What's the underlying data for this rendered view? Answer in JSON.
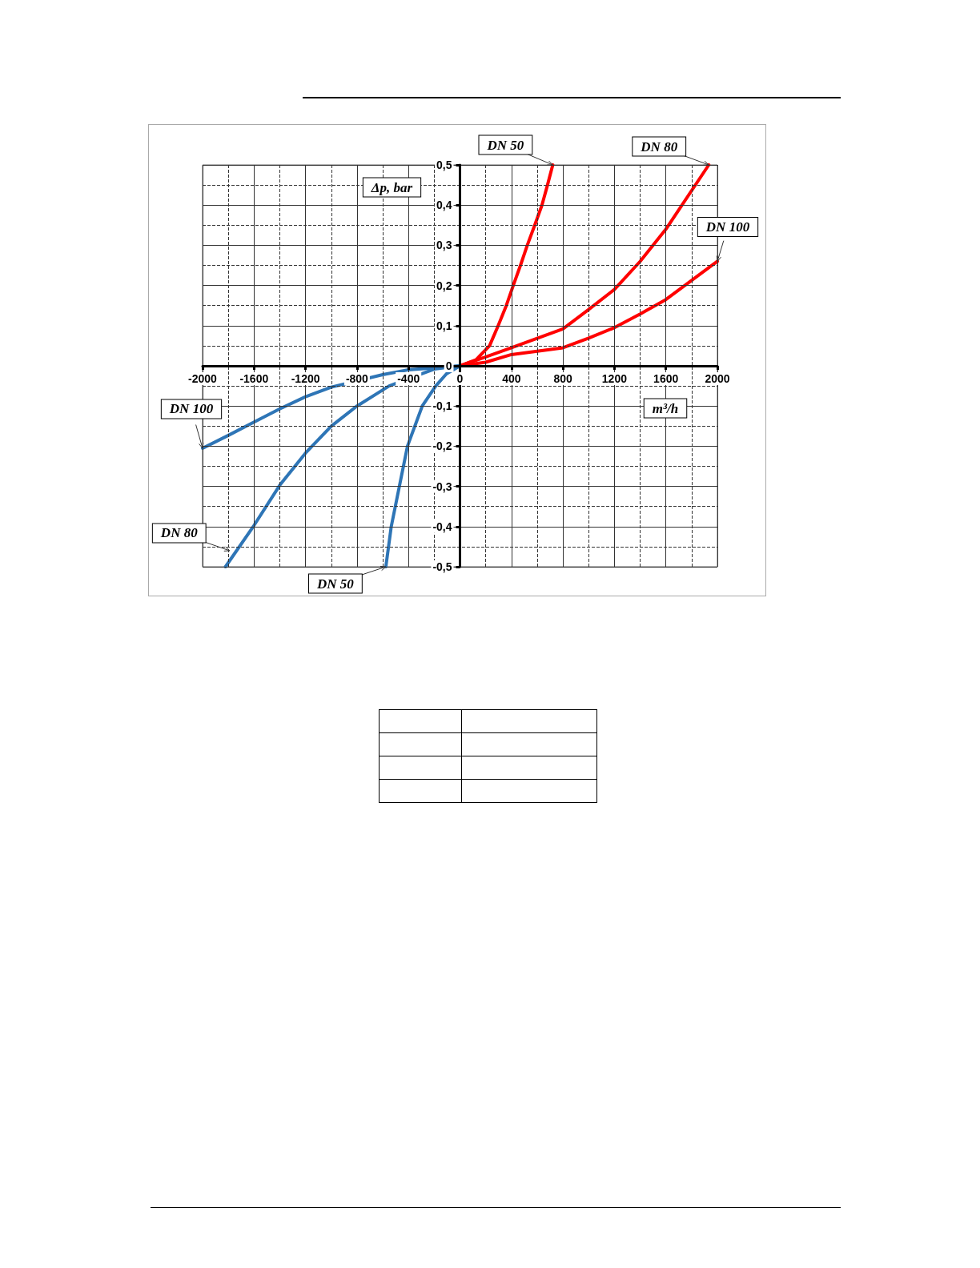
{
  "chart_data": {
    "type": "line",
    "xlabel": "m³/h",
    "ylabel": "Δp, bar",
    "xlim": [
      -2000,
      2000
    ],
    "ylim": [
      -0.5,
      0.5
    ],
    "xticks": [
      -2000,
      -1600,
      -1200,
      -800,
      -400,
      0,
      400,
      800,
      1200,
      1600,
      2000
    ],
    "yticks": [
      {
        "value": -0.5,
        "label": "-0,5"
      },
      {
        "value": -0.4,
        "label": "-0,4"
      },
      {
        "value": -0.3,
        "label": "-0,3"
      },
      {
        "value": -0.2,
        "label": "-0,2"
      },
      {
        "value": -0.1,
        "label": "-0,1"
      },
      0,
      {
        "value": 0.1,
        "label": "0,1"
      },
      {
        "value": 0.2,
        "label": "0,2"
      },
      {
        "value": 0.3,
        "label": "0,3"
      },
      {
        "value": 0.4,
        "label": "0,4"
      },
      {
        "value": 0.5,
        "label": "0,5"
      }
    ],
    "grid": true,
    "marker": "none",
    "line_style": "solid",
    "series": [
      {
        "color": "#ff0000",
        "x": [
          0,
          125,
          230,
          297,
          360,
          414,
          470,
          523,
          581,
          637,
          680,
          721
        ],
        "values": [
          0,
          0.015,
          0.05,
          0.1,
          0.15,
          0.2,
          0.25,
          0.3,
          0.35,
          0.4,
          0.45,
          0.5
        ]
      },
      {
        "color": "#ff0000",
        "x": [
          0,
          200,
          400,
          800,
          1000,
          1200,
          1400,
          1600,
          1933
        ],
        "values": [
          0,
          0.022,
          0.045,
          0.092,
          0.14,
          0.19,
          0.26,
          0.34,
          0.5
        ]
      },
      {
        "color": "#ff0000",
        "x": [
          0,
          200,
          400,
          800,
          1000,
          1200,
          1400,
          1600,
          2000
        ],
        "values": [
          0,
          0.009,
          0.028,
          0.045,
          0.069,
          0.095,
          0.129,
          0.165,
          0.26
        ]
      },
      {
        "color": "#2e75b6",
        "x": [
          -2000,
          -1800,
          -1600,
          -1400,
          -1200,
          -1000,
          -600,
          -400,
          0
        ],
        "values": [
          -0.205,
          -0.173,
          -0.14,
          -0.107,
          -0.077,
          -0.053,
          -0.022,
          -0.01,
          0
        ]
      },
      {
        "color": "#2e75b6",
        "x": [
          -1822,
          -1600,
          -1400,
          -1200,
          -1000,
          -800,
          -600,
          -550,
          -200,
          0
        ],
        "values": [
          -0.5,
          -0.397,
          -0.297,
          -0.217,
          -0.15,
          -0.1,
          -0.06,
          -0.05,
          -0.008,
          0
        ]
      },
      {
        "color": "#2e75b6",
        "x": [
          -576,
          -534,
          -471,
          -408,
          -293,
          -188,
          -105,
          0
        ],
        "values": [
          -0.5,
          -0.4,
          -0.3,
          -0.2,
          -0.1,
          -0.05,
          -0.02,
          0
        ]
      }
    ],
    "annotations": [
      {
        "text": "DN 50",
        "x": 721,
        "y": 0.5
      },
      {
        "text": "DN 80",
        "x": 1933,
        "y": 0.5
      },
      {
        "text": "DN 100",
        "x": 2000,
        "y": 0.26
      },
      {
        "text": "DN 100",
        "x": -2000,
        "y": -0.205
      },
      {
        "text": "DN 80",
        "x": -1790,
        "y": -0.46
      },
      {
        "text": "DN 50",
        "x": -576,
        "y": -0.5
      }
    ]
  }
}
